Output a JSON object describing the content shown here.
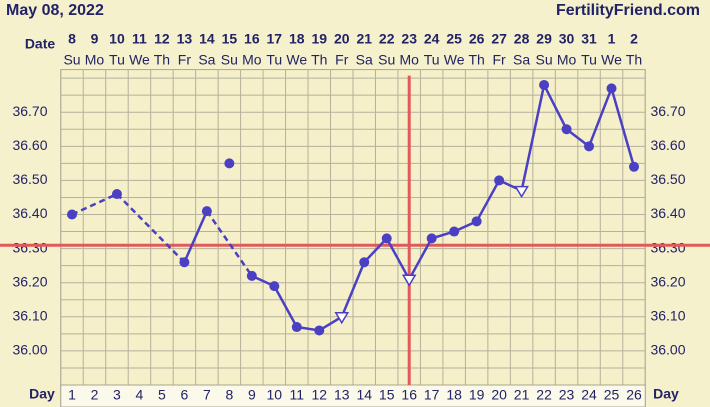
{
  "chart_data": {
    "type": "line",
    "title": "May 08, 2022",
    "site": "FertilityFriend.com",
    "date_label": "Date",
    "day_label": "Day",
    "dates": [
      "8",
      "9",
      "10",
      "11",
      "12",
      "13",
      "14",
      "15",
      "16",
      "17",
      "18",
      "19",
      "20",
      "21",
      "22",
      "23",
      "24",
      "25",
      "26",
      "27",
      "28",
      "29",
      "30",
      "31",
      "1",
      "2"
    ],
    "weekdays": [
      "Su",
      "Mo",
      "Tu",
      "We",
      "Th",
      "Fr",
      "Sa",
      "Su",
      "Mo",
      "Tu",
      "We",
      "Th",
      "Fr",
      "Sa",
      "Su",
      "Mo",
      "Tu",
      "We",
      "Th",
      "Fr",
      "Sa",
      "Su",
      "Mo",
      "Tu",
      "We",
      "Th"
    ],
    "days": [
      1,
      2,
      3,
      4,
      5,
      6,
      7,
      8,
      9,
      10,
      11,
      12,
      13,
      14,
      15,
      16,
      17,
      18,
      19,
      20,
      21,
      22,
      23,
      24,
      25,
      26
    ],
    "series": [
      {
        "color": "#4b3fc4",
        "values": [
          36.4,
          null,
          36.46,
          null,
          null,
          36.26,
          36.41,
          36.55,
          36.22,
          36.19,
          36.07,
          36.06,
          36.1,
          36.26,
          36.33,
          36.21,
          36.33,
          36.35,
          36.38,
          36.5,
          36.47,
          36.78,
          36.65,
          36.6,
          36.77,
          36.54
        ],
        "markers": [
          "filled",
          "none",
          "filled",
          "none",
          "none",
          "filled",
          "filled",
          "discarded",
          "filled",
          "filled",
          "filled",
          "filled",
          "open",
          "filled",
          "filled",
          "open",
          "filled",
          "filled",
          "filled",
          "filled",
          "open",
          "filled",
          "filled",
          "filled",
          "filled",
          "filled"
        ]
      }
    ],
    "coverline": 36.31,
    "ovulation_day": 16,
    "reference_color": "#e05a5a",
    "ylim": [
      35.9,
      36.825
    ],
    "yticks": [
      {
        "value": 36.0,
        "label": "36.00"
      },
      {
        "value": 36.1,
        "label": "36.10"
      },
      {
        "value": 36.2,
        "label": "36.20"
      },
      {
        "value": 36.3,
        "label": "36.30"
      },
      {
        "value": 36.4,
        "label": "36.40"
      },
      {
        "value": 36.5,
        "label": "36.50"
      },
      {
        "value": 36.6,
        "label": "36.60"
      },
      {
        "value": 36.7,
        "label": "36.70"
      }
    ],
    "minor_yticks": [
      35.9,
      35.95,
      36.05,
      36.15,
      36.25,
      36.35,
      36.45,
      36.55,
      36.65,
      36.75,
      36.8
    ],
    "grid": true
  }
}
